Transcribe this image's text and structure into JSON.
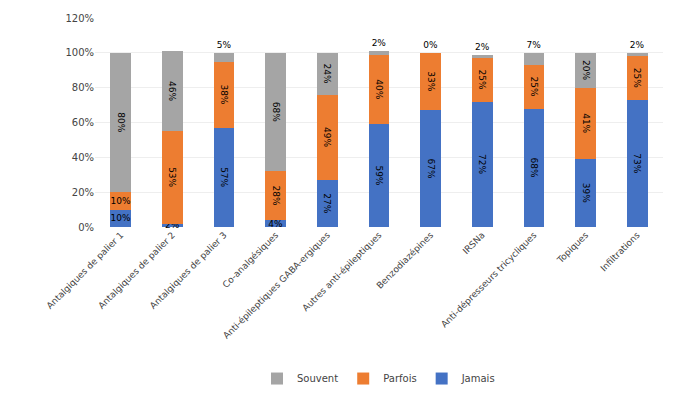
{
  "chart_data": {
    "type": "bar",
    "stacked": true,
    "data_labels": true,
    "grid": true,
    "legend": "bottom",
    "categories": [
      "Antalgiques de palier 1",
      "Antalgiques de palier 2",
      "Antalgiques de palier 3",
      "Co-analgésiques",
      "Anti-épileptiques GABA-ergiques",
      "Autres anti-épileptiques",
      "Benzodiazépines",
      "IRSNa",
      "Anti-dépresseurs tricycliques",
      "Topiques",
      "Infiltrations"
    ],
    "series": [
      {
        "name": "Jamais",
        "color": "#4472C4",
        "values": [
          10,
          2,
          57,
          4,
          27,
          59,
          67,
          72,
          68,
          39,
          73
        ],
        "value_labels": [
          "10%",
          "2%",
          "57%",
          "4%",
          "27%",
          "59%",
          "67%",
          "72%",
          "68%",
          "39%",
          "73%"
        ]
      },
      {
        "name": "Parfois",
        "color": "#ED7D31",
        "values": [
          10,
          53,
          38,
          28,
          49,
          40,
          33,
          25,
          25,
          41,
          25
        ],
        "value_labels": [
          "10%",
          "53%",
          "38%",
          "28%",
          "49%",
          "40%",
          "33%",
          "25%",
          "25%",
          "41%",
          "25%"
        ]
      },
      {
        "name": "Souvent",
        "color": "#A5A5A5",
        "values": [
          80,
          46,
          5,
          68,
          24,
          2,
          0,
          2,
          7,
          20,
          2
        ],
        "value_labels": [
          "80%",
          "46%",
          "5%",
          "68%",
          "24%",
          "2%",
          "0%",
          "2%",
          "7%",
          "20%",
          "2%"
        ]
      }
    ],
    "ylim": [
      0,
      120
    ],
    "yticks": [
      {
        "value": 0,
        "label": "0%"
      },
      {
        "value": 20,
        "label": "20%"
      },
      {
        "value": 40,
        "label": "40%"
      },
      {
        "value": 60,
        "label": "60%"
      },
      {
        "value": 80,
        "label": "80%"
      },
      {
        "value": 100,
        "label": "100%"
      },
      {
        "value": 120,
        "label": "120%"
      }
    ]
  }
}
